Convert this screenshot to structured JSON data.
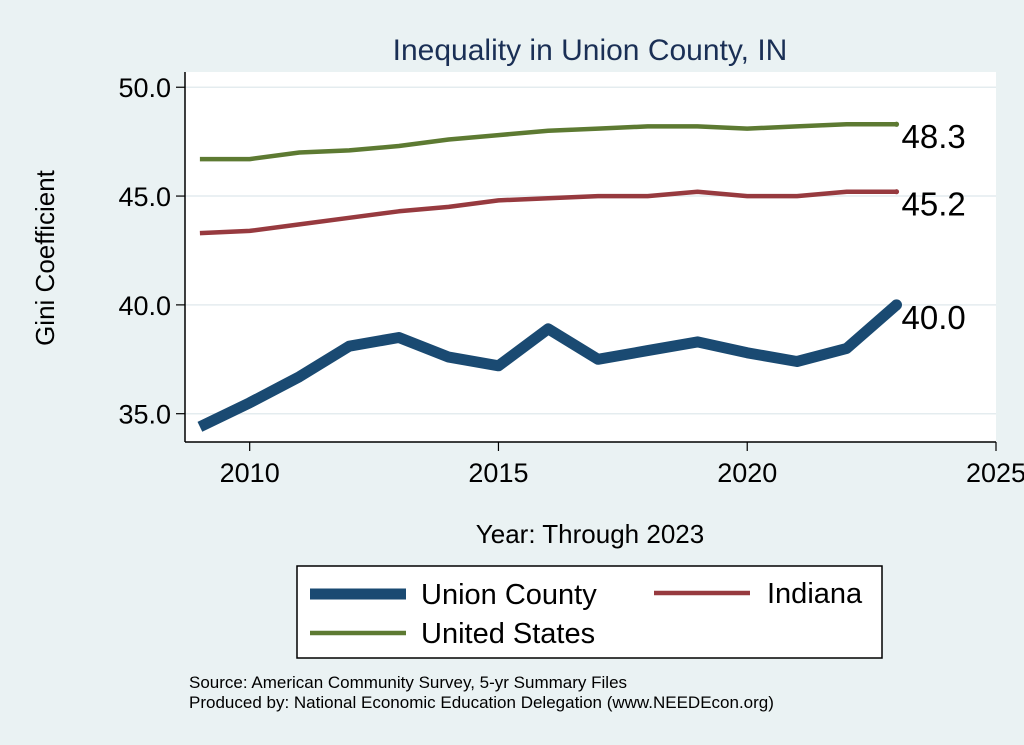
{
  "chart_data": {
    "type": "line",
    "title": "Inequality in Union County, IN",
    "xlabel": "Year: Through 2023",
    "ylabel": "Gini Coefficient",
    "xlim": [
      2008.7,
      2025
    ],
    "ylim": [
      33.7,
      50.7
    ],
    "x_ticks": [
      "2010",
      "2015",
      "2020",
      "2025"
    ],
    "y_ticks": [
      "35.0",
      "40.0",
      "45.0",
      "50.0"
    ],
    "x": [
      2009,
      2010,
      2011,
      2012,
      2013,
      2014,
      2015,
      2016,
      2017,
      2018,
      2019,
      2020,
      2021,
      2022,
      2023
    ],
    "series": [
      {
        "name": "Union County",
        "color": "#1a4a72",
        "values": [
          34.4,
          35.5,
          36.7,
          38.1,
          38.5,
          37.6,
          37.2,
          38.9,
          37.5,
          37.9,
          38.3,
          37.8,
          37.4,
          38.0,
          40.0
        ],
        "end_label": "40.0"
      },
      {
        "name": "Indiana",
        "color": "#973a3f",
        "values": [
          43.3,
          43.4,
          43.7,
          44.0,
          44.3,
          44.5,
          44.8,
          44.9,
          45.0,
          45.0,
          45.2,
          45.0,
          45.0,
          45.2,
          45.2
        ],
        "end_label": "45.2"
      },
      {
        "name": "United States",
        "color": "#5d7a32",
        "values": [
          46.7,
          46.7,
          47.0,
          47.1,
          47.3,
          47.6,
          47.8,
          48.0,
          48.1,
          48.2,
          48.2,
          48.1,
          48.2,
          48.3,
          48.3
        ],
        "end_label": "48.3"
      }
    ],
    "legend_position": "bottom",
    "grid": true,
    "notes": [
      "Source: American Community Survey, 5-yr Summary Files",
      "Produced by: National Economic Education Delegation (www.NEEDEcon.org)"
    ]
  }
}
